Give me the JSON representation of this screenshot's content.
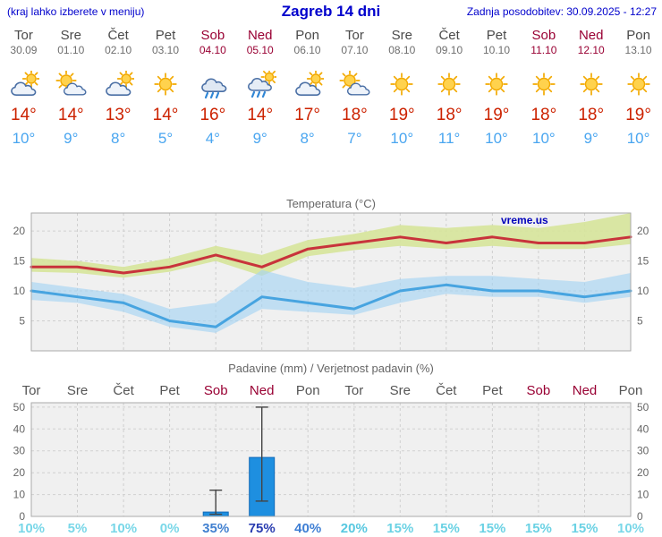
{
  "header": {
    "left_note": "(kraj lahko izberete v meniju)",
    "title": "Zagreb 14 dni",
    "last_update": "Zadnja posodobitev: 30.09.2025 - 12:27"
  },
  "colors": {
    "accent_blue": "#0000cc",
    "max_temp_red": "#cc2200",
    "min_temp_blue": "#4aa6f0",
    "weekend_red": "#990033",
    "weekday_gray": "#4a4a4a"
  },
  "days": [
    {
      "name": "Tor",
      "date": "30.09",
      "icon": "mostly-cloudy",
      "tmax": "14°",
      "tmin": "10°",
      "weekend": false
    },
    {
      "name": "Sre",
      "date": "01.10",
      "icon": "partly-cloudy",
      "tmax": "14°",
      "tmin": "9°",
      "weekend": false
    },
    {
      "name": "Čet",
      "date": "02.10",
      "icon": "mostly-cloudy",
      "tmax": "13°",
      "tmin": "8°",
      "weekend": false
    },
    {
      "name": "Pet",
      "date": "03.10",
      "icon": "sunny",
      "tmax": "14°",
      "tmin": "5°",
      "weekend": false
    },
    {
      "name": "Sob",
      "date": "04.10",
      "icon": "rain",
      "tmax": "16°",
      "tmin": "4°",
      "weekend": true
    },
    {
      "name": "Ned",
      "date": "05.10",
      "icon": "rain-showers",
      "tmax": "14°",
      "tmin": "9°",
      "weekend": true
    },
    {
      "name": "Pon",
      "date": "06.10",
      "icon": "mostly-cloudy",
      "tmax": "17°",
      "tmin": "8°",
      "weekend": false
    },
    {
      "name": "Tor",
      "date": "07.10",
      "icon": "partly-cloudy",
      "tmax": "18°",
      "tmin": "7°",
      "weekend": false
    },
    {
      "name": "Sre",
      "date": "08.10",
      "icon": "sunny",
      "tmax": "19°",
      "tmin": "10°",
      "weekend": false
    },
    {
      "name": "Čet",
      "date": "09.10",
      "icon": "sunny",
      "tmax": "18°",
      "tmin": "11°",
      "weekend": false
    },
    {
      "name": "Pet",
      "date": "10.10",
      "icon": "sunny",
      "tmax": "19°",
      "tmin": "10°",
      "weekend": false
    },
    {
      "name": "Sob",
      "date": "11.10",
      "icon": "sunny",
      "tmax": "18°",
      "tmin": "10°",
      "weekend": true
    },
    {
      "name": "Ned",
      "date": "12.10",
      "icon": "sunny",
      "tmax": "18°",
      "tmin": "9°",
      "weekend": true
    },
    {
      "name": "Pon",
      "date": "13.10",
      "icon": "sunny",
      "tmax": "19°",
      "tmin": "10°",
      "weekend": false
    }
  ],
  "chart_data": [
    {
      "type": "line",
      "title": "Temperatura (°C)",
      "watermark": "vreme.us",
      "ylim": [
        0,
        23
      ],
      "yticks": [
        5,
        10,
        15,
        20
      ],
      "grid": true,
      "series": [
        {
          "name": "max-temperature",
          "color": "#c8333b",
          "band_color": "#d6e49a",
          "values": [
            14,
            14,
            13,
            14,
            16,
            14,
            17,
            18,
            19,
            18,
            19,
            18,
            18,
            19
          ],
          "band_upper": [
            15.5,
            15,
            14,
            15.5,
            17.5,
            16,
            18.5,
            19.5,
            21,
            20.5,
            21,
            20.5,
            21.5,
            23
          ],
          "band_lower": [
            13.2,
            13,
            12.2,
            13.2,
            15,
            12.5,
            15.8,
            16.8,
            17.5,
            17,
            17.5,
            17,
            17,
            17.8
          ]
        },
        {
          "name": "min-temperature",
          "color": "#47a4e0",
          "band_color": "#a6d4f2",
          "values": [
            10,
            9,
            8,
            5,
            4,
            9,
            8,
            7,
            10,
            11,
            10,
            10,
            9,
            10
          ],
          "band_upper": [
            11.5,
            10.5,
            9.5,
            7,
            8,
            13.5,
            11.5,
            10.5,
            12,
            12.5,
            12.5,
            12,
            11.5,
            13
          ],
          "band_lower": [
            8.5,
            8,
            6.5,
            4,
            3,
            7,
            6.5,
            6,
            8,
            9.5,
            9,
            9,
            8,
            9
          ]
        }
      ]
    },
    {
      "type": "bar",
      "title": "Padavine (mm) / Verjetnost padavin (%)",
      "categories": [
        "Tor",
        "Sre",
        "Čet",
        "Pet",
        "Sob",
        "Ned",
        "Pon",
        "Tor",
        "Sre",
        "Čet",
        "Pet",
        "Sob",
        "Ned",
        "Pon"
      ],
      "values_mm": [
        0,
        0,
        0,
        0,
        2,
        27,
        0,
        0,
        0,
        0,
        0,
        0,
        0,
        0
      ],
      "whiskers": [
        null,
        null,
        null,
        null,
        {
          "low": 1,
          "high": 12
        },
        {
          "low": 7,
          "high": 50
        },
        null,
        null,
        null,
        null,
        null,
        null,
        null,
        null
      ],
      "probability": [
        "10%",
        "5%",
        "10%",
        "0%",
        "35%",
        "75%",
        "40%",
        "20%",
        "15%",
        "15%",
        "15%",
        "15%",
        "15%",
        "10%"
      ],
      "prob_colors": [
        "#79d7e8",
        "#79d7e8",
        "#79d7e8",
        "#79d7e8",
        "#4180d0",
        "#2a3db0",
        "#3f7fd4",
        "#58c8e0",
        "#6bd2e4",
        "#6bd2e4",
        "#6bd2e4",
        "#6bd2e4",
        "#6bd2e4",
        "#79d7e8"
      ],
      "bar_color": "#1e8fe0",
      "ylim": [
        0,
        52
      ],
      "yticks": [
        0,
        10,
        20,
        30,
        40,
        50
      ]
    }
  ]
}
